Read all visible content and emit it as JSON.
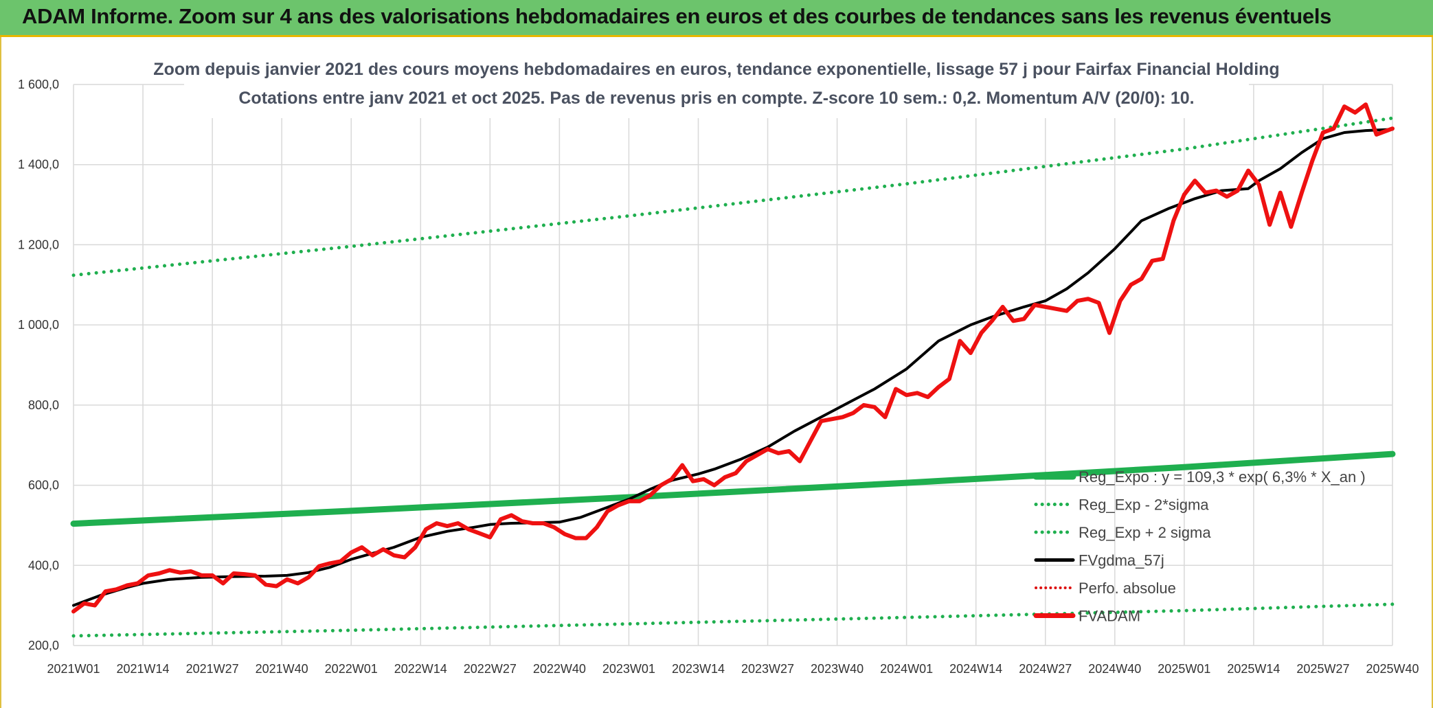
{
  "banner": {
    "title": "ADAM Informe. Zoom sur 4 ans des valorisations hebdomadaires en euros et des courbes de tendances sans les revenus éventuels"
  },
  "colors": {
    "banner_bg": "#6cc46c",
    "reg_expo": "#1faf4f",
    "fvadam": "#ee1111",
    "fvgdma": "#000000",
    "perfo": "#dd1111",
    "grid": "#d9d9d9"
  },
  "chart_data": {
    "type": "line",
    "title": "Zoom depuis janvier 2021 des cours moyens hebdomadaires en euros, tendance exponentielle, lissage 57 j pour Fairfax Financial Holding",
    "subtitle": "Cotations entre janv 2021 et oct 2025. Pas de revenus pris en compte. Z-score 10 sem.: 0,2. Momentum A/V (20/0): 10.",
    "xlabel": "",
    "ylabel": "",
    "ylim": [
      200,
      1600
    ],
    "yticks": [
      200,
      400,
      600,
      800,
      1000,
      1200,
      1400,
      1600
    ],
    "ytick_labels": [
      "200,0",
      "400,0",
      "600,0",
      "800,0",
      "1 000,0",
      "1 200,0",
      "1 400,0",
      "1 600,0"
    ],
    "xlim": [
      0,
      247
    ],
    "xticks": [
      0,
      13,
      26,
      39,
      52,
      65,
      78,
      91,
      104,
      117,
      130,
      143,
      156,
      169,
      182,
      195,
      208,
      221,
      234,
      247
    ],
    "xtick_labels": [
      "2021W01",
      "2021W14",
      "2021W27",
      "2021W40",
      "2022W01",
      "2022W14",
      "2022W27",
      "2022W40",
      "2023W01",
      "2023W14",
      "2023W27",
      "2023W40",
      "2024W01",
      "2024W14",
      "2024W27",
      "2024W40",
      "2025W01",
      "2025W14",
      "2025W27",
      "2025W40"
    ],
    "grid": true,
    "legend_position": "bottom-right",
    "legend": [
      "Reg_Expo : y = 109,3 * exp( 6,3% *  X_an )",
      "Reg_Exp - 2*sigma",
      "Reg_Exp + 2 sigma",
      "FVgdma_57j",
      "Perfo. absolue",
      "FVADAM"
    ],
    "series": [
      {
        "name": "Reg_Expo : y = 109,3 * exp( 6,3% *  X_an )",
        "style": "solid-thick",
        "x": [
          0,
          52,
          104,
          156,
          208,
          247
        ],
        "values": [
          504,
          536,
          570,
          606,
          645,
          678
        ]
      },
      {
        "name": "Reg_Exp - 2*sigma",
        "style": "dotted",
        "x": [
          0,
          52,
          104,
          156,
          208,
          247
        ],
        "values": [
          224,
          238,
          254,
          270,
          287,
          303
        ]
      },
      {
        "name": "Reg_Exp + 2 sigma",
        "style": "dotted",
        "x": [
          0,
          52,
          104,
          156,
          208,
          247
        ],
        "values": [
          1124,
          1196,
          1272,
          1352,
          1439,
          1516
        ]
      },
      {
        "name": "FVgdma_57j",
        "style": "solid",
        "x": [
          0,
          5,
          10,
          13,
          18,
          24,
          30,
          36,
          40,
          44,
          48,
          52,
          56,
          60,
          65,
          70,
          75,
          78,
          82,
          86,
          91,
          95,
          100,
          104,
          108,
          112,
          117,
          120,
          125,
          130,
          135,
          140,
          145,
          150,
          156,
          162,
          168,
          172,
          178,
          182,
          186,
          190,
          195,
          200,
          205,
          210,
          215,
          220,
          222,
          226,
          230,
          234,
          238,
          242,
          247
        ],
        "values": [
          300,
          325,
          345,
          355,
          365,
          370,
          372,
          373,
          375,
          382,
          395,
          415,
          430,
          445,
          470,
          485,
          495,
          502,
          505,
          506,
          508,
          520,
          545,
          565,
          590,
          612,
          628,
          640,
          665,
          695,
          735,
          770,
          805,
          840,
          890,
          960,
          1000,
          1020,
          1045,
          1060,
          1090,
          1130,
          1190,
          1260,
          1290,
          1315,
          1335,
          1340,
          1360,
          1390,
          1430,
          1465,
          1480,
          1485,
          1488
        ]
      },
      {
        "name": "FVADAM",
        "style": "solid-thick",
        "x": [
          0,
          2,
          4,
          6,
          8,
          10,
          12,
          14,
          16,
          18,
          20,
          22,
          24,
          26,
          28,
          30,
          32,
          34,
          36,
          38,
          40,
          42,
          44,
          46,
          48,
          50,
          52,
          54,
          56,
          58,
          60,
          62,
          64,
          66,
          68,
          70,
          72,
          74,
          76,
          78,
          80,
          82,
          84,
          86,
          88,
          90,
          92,
          94,
          96,
          98,
          100,
          102,
          104,
          106,
          108,
          110,
          112,
          114,
          116,
          118,
          120,
          122,
          124,
          126,
          128,
          130,
          132,
          134,
          136,
          138,
          140,
          142,
          144,
          146,
          148,
          150,
          152,
          154,
          156,
          158,
          160,
          162,
          164,
          166,
          168,
          170,
          172,
          174,
          176,
          178,
          180,
          182,
          184,
          186,
          188,
          190,
          192,
          194,
          196,
          198,
          200,
          202,
          204,
          206,
          208,
          210,
          212,
          214,
          216,
          218,
          220,
          222,
          224,
          226,
          228,
          230,
          232,
          234,
          236,
          238,
          240,
          242,
          244,
          247
        ],
        "values": [
          285,
          305,
          300,
          335,
          340,
          350,
          355,
          375,
          380,
          388,
          382,
          385,
          375,
          375,
          355,
          380,
          378,
          375,
          352,
          348,
          365,
          355,
          370,
          398,
          405,
          410,
          432,
          445,
          425,
          440,
          425,
          420,
          445,
          490,
          505,
          498,
          505,
          490,
          480,
          470,
          515,
          525,
          510,
          505,
          505,
          495,
          478,
          468,
          468,
          495,
          535,
          550,
          560,
          560,
          575,
          600,
          615,
          650,
          610,
          615,
          600,
          620,
          630,
          660,
          675,
          690,
          680,
          685,
          660,
          710,
          760,
          765,
          770,
          780,
          800,
          795,
          770,
          840,
          825,
          830,
          820,
          845,
          865,
          960,
          930,
          980,
          1010,
          1045,
          1010,
          1015,
          1050,
          1045,
          1040,
          1035,
          1060,
          1065,
          1055,
          980,
          1060,
          1100,
          1115,
          1160,
          1165,
          1260,
          1325,
          1360,
          1330,
          1335,
          1320,
          1335,
          1385,
          1350,
          1250,
          1330,
          1245,
          1330,
          1410,
          1480,
          1490,
          1545,
          1530,
          1550,
          1475,
          1490
        ]
      }
    ]
  }
}
